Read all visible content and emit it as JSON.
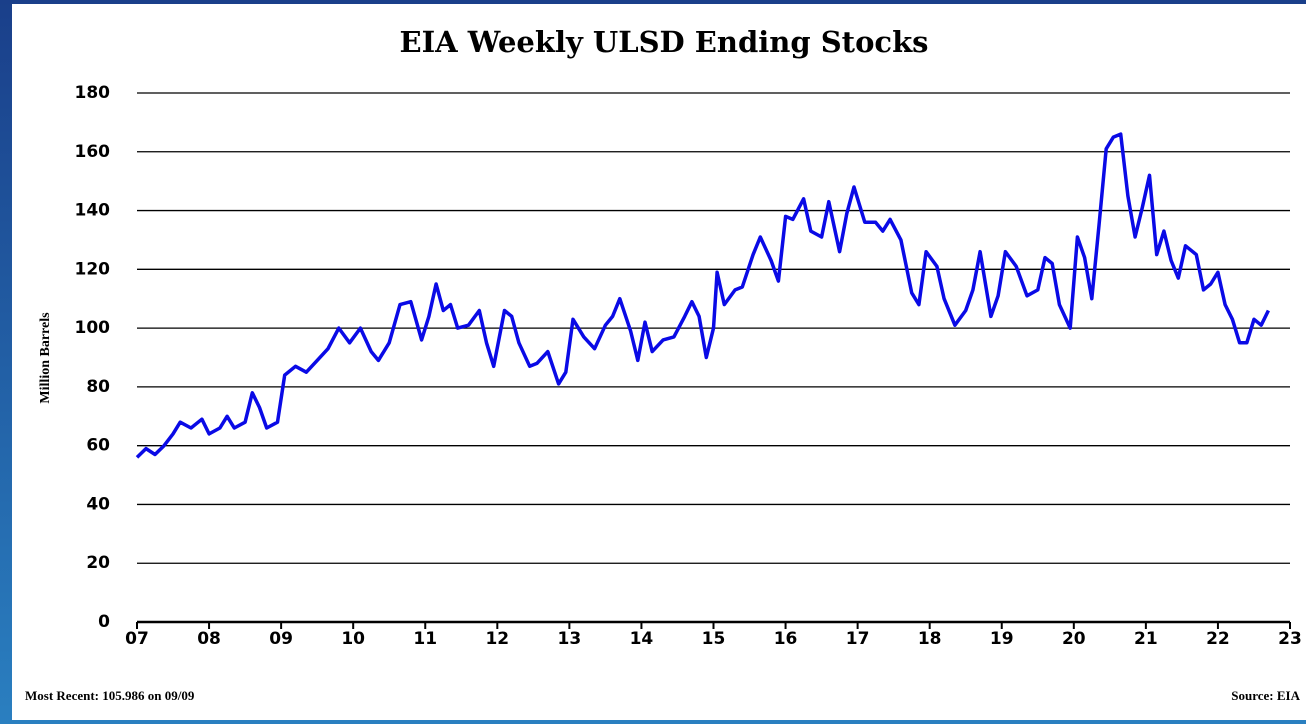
{
  "chart_data": {
    "type": "line",
    "title": "EIA Weekly ULSD Ending Stocks",
    "y_label": "Million Barrels",
    "annotations": [
      "Most Recent: 105.986 on 09/09",
      "Source: EIA"
    ],
    "x": [
      2007.0,
      2007.125,
      2007.25,
      2007.375,
      2007.5,
      2007.6,
      2007.75,
      2007.9,
      2008.0,
      2008.15,
      2008.25,
      2008.35,
      2008.5,
      2008.6,
      2008.7,
      2008.8,
      2008.95,
      2009.05,
      2009.2,
      2009.35,
      2009.5,
      2009.65,
      2009.8,
      2009.95,
      2010.1,
      2010.25,
      2010.35,
      2010.5,
      2010.65,
      2010.8,
      2010.95,
      2011.05,
      2011.15,
      2011.25,
      2011.35,
      2011.45,
      2011.6,
      2011.75,
      2011.85,
      2011.95,
      2012.1,
      2012.2,
      2012.3,
      2012.45,
      2012.55,
      2012.7,
      2012.85,
      2012.95,
      2013.05,
      2013.2,
      2013.35,
      2013.5,
      2013.6,
      2013.7,
      2013.85,
      2013.95,
      2014.05,
      2014.15,
      2014.3,
      2014.45,
      2014.6,
      2014.7,
      2014.8,
      2014.9,
      2015.0,
      2015.05,
      2015.15,
      2015.3,
      2015.4,
      2015.55,
      2015.65,
      2015.8,
      2015.9,
      2016.0,
      2016.1,
      2016.25,
      2016.35,
      2016.5,
      2016.6,
      2016.75,
      2016.85,
      2016.95,
      2017.1,
      2017.25,
      2017.35,
      2017.45,
      2017.6,
      2017.75,
      2017.85,
      2017.95,
      2018.1,
      2018.2,
      2018.35,
      2018.5,
      2018.6,
      2018.7,
      2018.85,
      2018.95,
      2019.05,
      2019.2,
      2019.35,
      2019.5,
      2019.6,
      2019.7,
      2019.8,
      2019.95,
      2020.05,
      2020.15,
      2020.25,
      2020.35,
      2020.45,
      2020.55,
      2020.65,
      2020.75,
      2020.85,
      2020.95,
      2021.05,
      2021.15,
      2021.25,
      2021.35,
      2021.45,
      2021.55,
      2021.7,
      2021.8,
      2021.9,
      2022.0,
      2022.1,
      2022.2,
      2022.3,
      2022.4,
      2022.5,
      2022.6,
      2022.7
    ],
    "series": [
      {
        "name": "ULSD Ending Stocks",
        "color": "#0a0ae6",
        "values": [
          56,
          59,
          57,
          60,
          64,
          68,
          66,
          69,
          64,
          66,
          70,
          66,
          68,
          78,
          73,
          66,
          68,
          84,
          87,
          85,
          89,
          93,
          100,
          95,
          100,
          92,
          89,
          95,
          108,
          109,
          96,
          104,
          115,
          106,
          108,
          100,
          101,
          106,
          95,
          87,
          106,
          104,
          95,
          87,
          88,
          92,
          81,
          85,
          103,
          97,
          93,
          101,
          104,
          110,
          99,
          89,
          102,
          92,
          96,
          97,
          104,
          109,
          104,
          90,
          100,
          119,
          108,
          113,
          114,
          125,
          131,
          123,
          116,
          138,
          137,
          144,
          133,
          131,
          143,
          126,
          139,
          148,
          136,
          136,
          133,
          137,
          130,
          112,
          108,
          126,
          121,
          110,
          101,
          106,
          113,
          126,
          104,
          111,
          126,
          121,
          111,
          113,
          124,
          122,
          108,
          100,
          131,
          124,
          110,
          135,
          161,
          165,
          166,
          145,
          131,
          141,
          152,
          125,
          133,
          123,
          117,
          128,
          125,
          113,
          115,
          119,
          108,
          103,
          95,
          95,
          103,
          101,
          106
        ]
      }
    ],
    "xlim": [
      2007,
      2023
    ],
    "xticks": [
      {
        "value": 2007,
        "label": "07"
      },
      {
        "value": 2008,
        "label": "08"
      },
      {
        "value": 2009,
        "label": "09"
      },
      {
        "value": 2010,
        "label": "10"
      },
      {
        "value": 2011,
        "label": "11"
      },
      {
        "value": 2012,
        "label": "12"
      },
      {
        "value": 2013,
        "label": "13"
      },
      {
        "value": 2014,
        "label": "14"
      },
      {
        "value": 2015,
        "label": "15"
      },
      {
        "value": 2016,
        "label": "16"
      },
      {
        "value": 2017,
        "label": "17"
      },
      {
        "value": 2018,
        "label": "18"
      },
      {
        "value": 2019,
        "label": "19"
      },
      {
        "value": 2020,
        "label": "20"
      },
      {
        "value": 2021,
        "label": "21"
      },
      {
        "value": 2022,
        "label": "22"
      },
      {
        "value": 2023,
        "label": "23"
      }
    ],
    "ylim": [
      0,
      180
    ],
    "yticks": [
      0,
      20,
      40,
      60,
      80,
      100,
      120,
      140,
      160,
      180
    ],
    "grid": true
  }
}
